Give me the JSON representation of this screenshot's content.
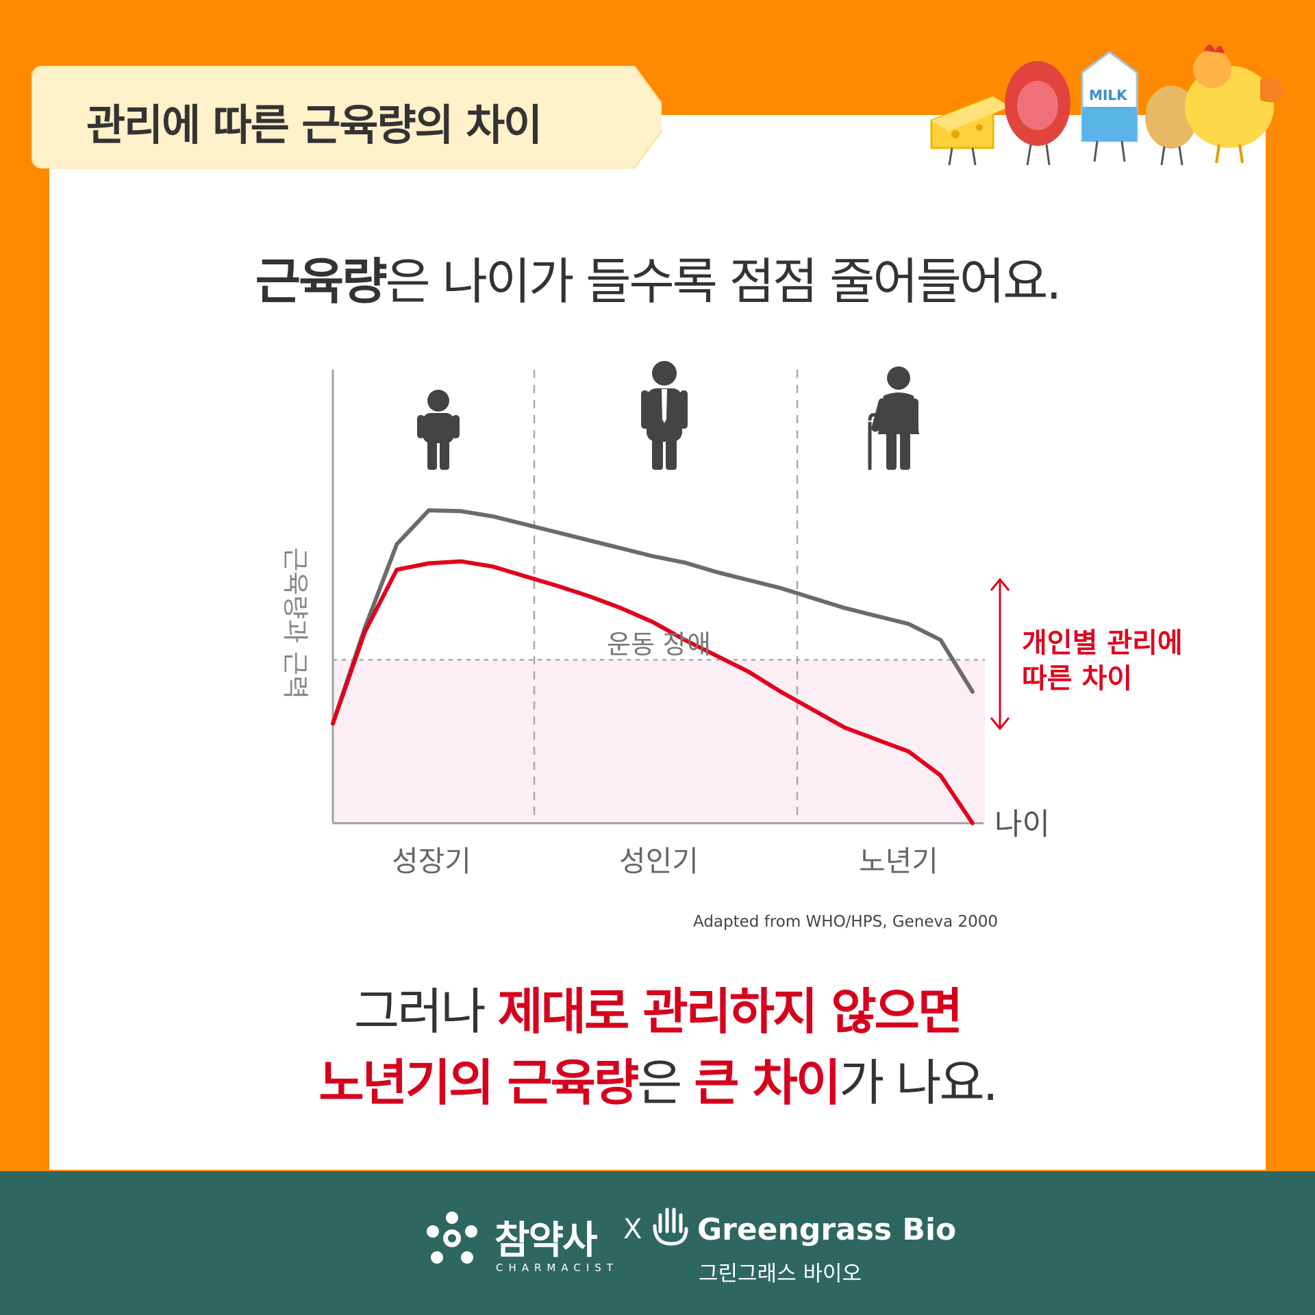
{
  "header": {
    "title": "관리에 따른 근육량의 차이"
  },
  "headline": {
    "bold": "근육량",
    "rest": "은 나이가 들수록 점점 줄어들어요."
  },
  "chart_data": {
    "type": "line",
    "ylabel": "근육량과 근력",
    "xlabel": "나이",
    "periods": [
      "성장기",
      "성인기",
      "노년기"
    ],
    "x": [
      0,
      0.5,
      1,
      1.5,
      2,
      2.5,
      3,
      3.5,
      4,
      4.5,
      5,
      5.5,
      6,
      6.5,
      7,
      7.5,
      8,
      8.5,
      9,
      9.5,
      10
    ],
    "xlim": [
      0,
      10
    ],
    "ylim": [
      0,
      100
    ],
    "threshold": {
      "label": "운동 장애",
      "value": 41
    },
    "series": [
      {
        "color": "#6B6B6B",
        "values": [
          25,
          49,
          70,
          78.5,
          78.3,
          77,
          75,
          73,
          71,
          69,
          67,
          65.4,
          63,
          61,
          59,
          56.5,
          54,
          52,
          50,
          46,
          33
        ]
      },
      {
        "color": "#E0001C",
        "values": [
          25,
          48,
          63.6,
          65.2,
          65.7,
          64.4,
          62,
          59.6,
          57,
          54,
          50.5,
          46,
          42,
          38,
          33,
          28.5,
          24,
          21,
          18,
          12,
          0
        ]
      }
    ],
    "annotation": {
      "line1": "개인별 관리에",
      "line2": "따른 차이"
    }
  },
  "source": "Adapted from WHO/HPS, Geneva 2000",
  "bottom": {
    "line1": {
      "plain": "그러나 ",
      "red": "제대로 관리하지 않으면"
    },
    "line2": {
      "red1": "노년기의 근육량",
      "plain1": "은 ",
      "red2": "큰 차이",
      "plain2": "가 나요."
    }
  },
  "footer": {
    "brand1": "참약사",
    "brand1_sub": "CHARMACIST",
    "times": "X",
    "brand2": "Greengrass Bio",
    "brand2_sub": "그린그래스 바이오"
  },
  "colors": {
    "orange": "#FF8A00",
    "red": "#D6001C",
    "footer": "#2E6760",
    "tab": "#FFF1C9"
  }
}
